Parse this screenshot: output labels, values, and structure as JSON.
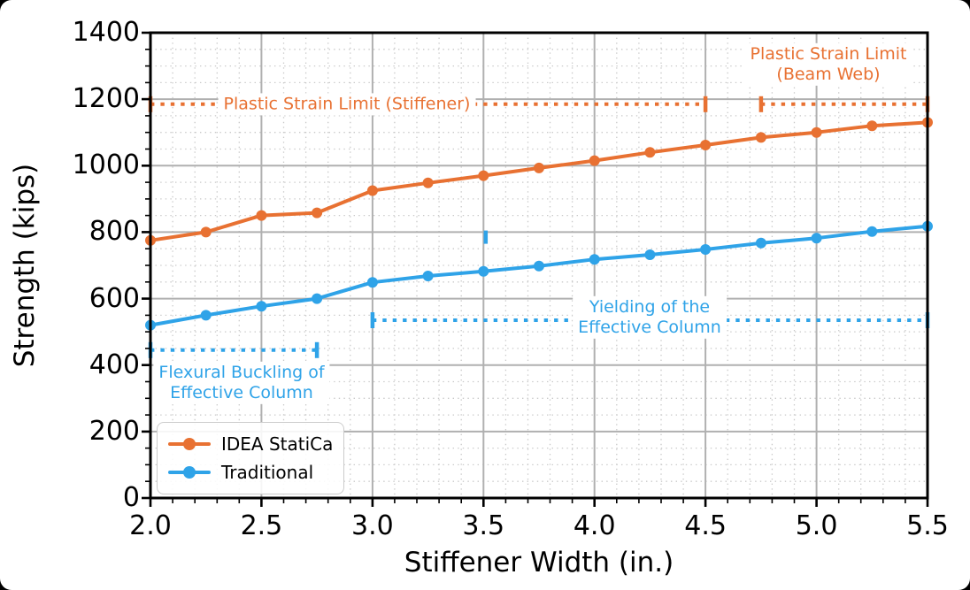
{
  "page": {
    "background": "#000000"
  },
  "figure": {
    "background": "#ffffff"
  },
  "axes": {
    "xlabel": "Stiffener Width (in.)",
    "ylabel": "Strength (kips)",
    "xtick_labels": [
      "2.0",
      "2.5",
      "3.0",
      "3.5",
      "4.0",
      "4.5",
      "5.0",
      "5.5"
    ],
    "ytick_labels": [
      "0",
      "200",
      "400",
      "600",
      "800",
      "1000",
      "1200",
      "1400"
    ],
    "spine_color": "#000000",
    "tick_color": "#000000",
    "grid_major_color": "#b0b0b0",
    "grid_minor_color": "#c9c9c9"
  },
  "legend": {
    "items": [
      {
        "label": "IDEA StatiCa",
        "color": "#e87132"
      },
      {
        "label": "Traditional",
        "color": "#2fa3e8"
      }
    ]
  },
  "annotations": [
    {
      "id": "plastic-strain-limit-stiffener",
      "line1": "Plastic Strain Limit (Stiffener)",
      "color": "#e87132"
    },
    {
      "id": "plastic-strain-limit-beam-web",
      "line1": "Plastic Strain Limit",
      "line2": "(Beam Web)",
      "color": "#e87132"
    },
    {
      "id": "yielding-effective-column",
      "line1": "Yielding of the",
      "line2": "Effective Column",
      "color": "#2fa3e8"
    },
    {
      "id": "flexural-buckling-effective-column",
      "line1": "Flexural Buckling of",
      "line2": "Effective Column",
      "color": "#2fa3e8"
    }
  ],
  "chart_data": {
    "type": "line",
    "title": "",
    "xlabel": "Stiffener Width (in.)",
    "ylabel": "Strength (kips)",
    "xlim": [
      2.0,
      5.5
    ],
    "ylim": [
      0,
      1400
    ],
    "x_major_step": 0.5,
    "x_minor_step": 0.1,
    "y_major_step": 200,
    "y_minor_step": 50,
    "grid": "both",
    "legend_position": "lower left",
    "x": [
      2.0,
      2.25,
      2.5,
      2.75,
      3.0,
      3.25,
      3.5,
      3.75,
      4.0,
      4.25,
      4.5,
      4.75,
      5.0,
      5.25,
      5.5
    ],
    "series": [
      {
        "name": "IDEA StatiCa",
        "color": "#e87132",
        "values": [
          775,
          800,
          850,
          858,
          925,
          948,
          970,
          993,
          1015,
          1040,
          1062,
          1085,
          1100,
          1120,
          1130
        ]
      },
      {
        "name": "Traditional",
        "color": "#2fa3e8",
        "values": [
          520,
          550,
          577,
          600,
          649,
          668,
          682,
          698,
          718,
          732,
          748,
          767,
          782,
          802,
          818
        ]
      }
    ],
    "limit_lines": [
      {
        "label": "Plastic Strain Limit (Stiffener)",
        "value": 1185,
        "x_start": 2.0,
        "x_end": 4.5,
        "color": "#e87132"
      },
      {
        "label": "Plastic Strain Limit (Beam Web)",
        "value": 1185,
        "x_start": 4.75,
        "x_end": 5.5,
        "color": "#e87132"
      },
      {
        "label": "Yielding of the Effective Column",
        "value": 535,
        "x_start": 3.0,
        "x_end": 5.5,
        "color": "#2fa3e8"
      },
      {
        "label": "Flexural Buckling of Effective Column",
        "value": 445,
        "x_start": 2.0,
        "x_end": 2.75,
        "color": "#2fa3e8"
      }
    ],
    "stray_tick": {
      "x": 3.51,
      "y": 785,
      "color": "#2fa3e8"
    }
  }
}
